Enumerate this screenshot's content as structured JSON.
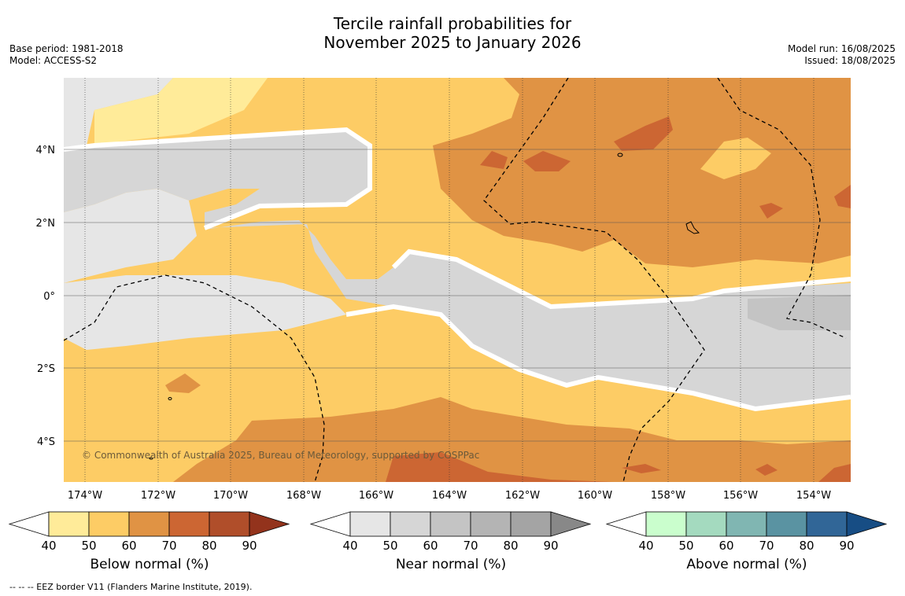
{
  "title_line1": "Tercile rainfall probabilities for",
  "title_line2": "November 2025 to January 2026",
  "base_period": "Base period: 1981-2018",
  "model": "Model: ACCESS-S2",
  "model_run": "Model run: 16/08/2025",
  "issued": "Issued: 18/08/2025",
  "copyright": "© Commonwealth of Australia 2025, Bureau of Meteorology, supported by COSPPac",
  "footnote": "--  --  -- EEZ border V11 (Flanders Marine Institute, 2019).",
  "lon_labels": [
    "174°W",
    "172°W",
    "170°W",
    "168°W",
    "166°W",
    "164°W",
    "162°W",
    "160°W",
    "158°W",
    "156°W",
    "154°W"
  ],
  "lat_labels": [
    "4°N",
    "2°N",
    "0°",
    "2°S",
    "4°S"
  ],
  "colorbars": [
    {
      "label": "Below normal (%)",
      "ticks": [
        "40",
        "50",
        "60",
        "70",
        "80",
        "90"
      ],
      "colors": [
        "#ffeb99",
        "#fdcc65",
        "#e09344",
        "#cc6633",
        "#b04e2a",
        "#93331c"
      ]
    },
    {
      "label": "Near normal (%)",
      "ticks": [
        "40",
        "50",
        "60",
        "70",
        "80",
        "90"
      ],
      "colors": [
        "#e6e6e6",
        "#d6d6d6",
        "#c4c4c4",
        "#b4b4b4",
        "#a4a4a4",
        "#888888"
      ]
    },
    {
      "label": "Above normal (%)",
      "ticks": [
        "40",
        "50",
        "60",
        "70",
        "80",
        "90"
      ],
      "colors": [
        "#cafecd",
        "#a4dabf",
        "#80b6b2",
        "#5a93a2",
        "#316697",
        "#174d84"
      ]
    }
  ]
}
